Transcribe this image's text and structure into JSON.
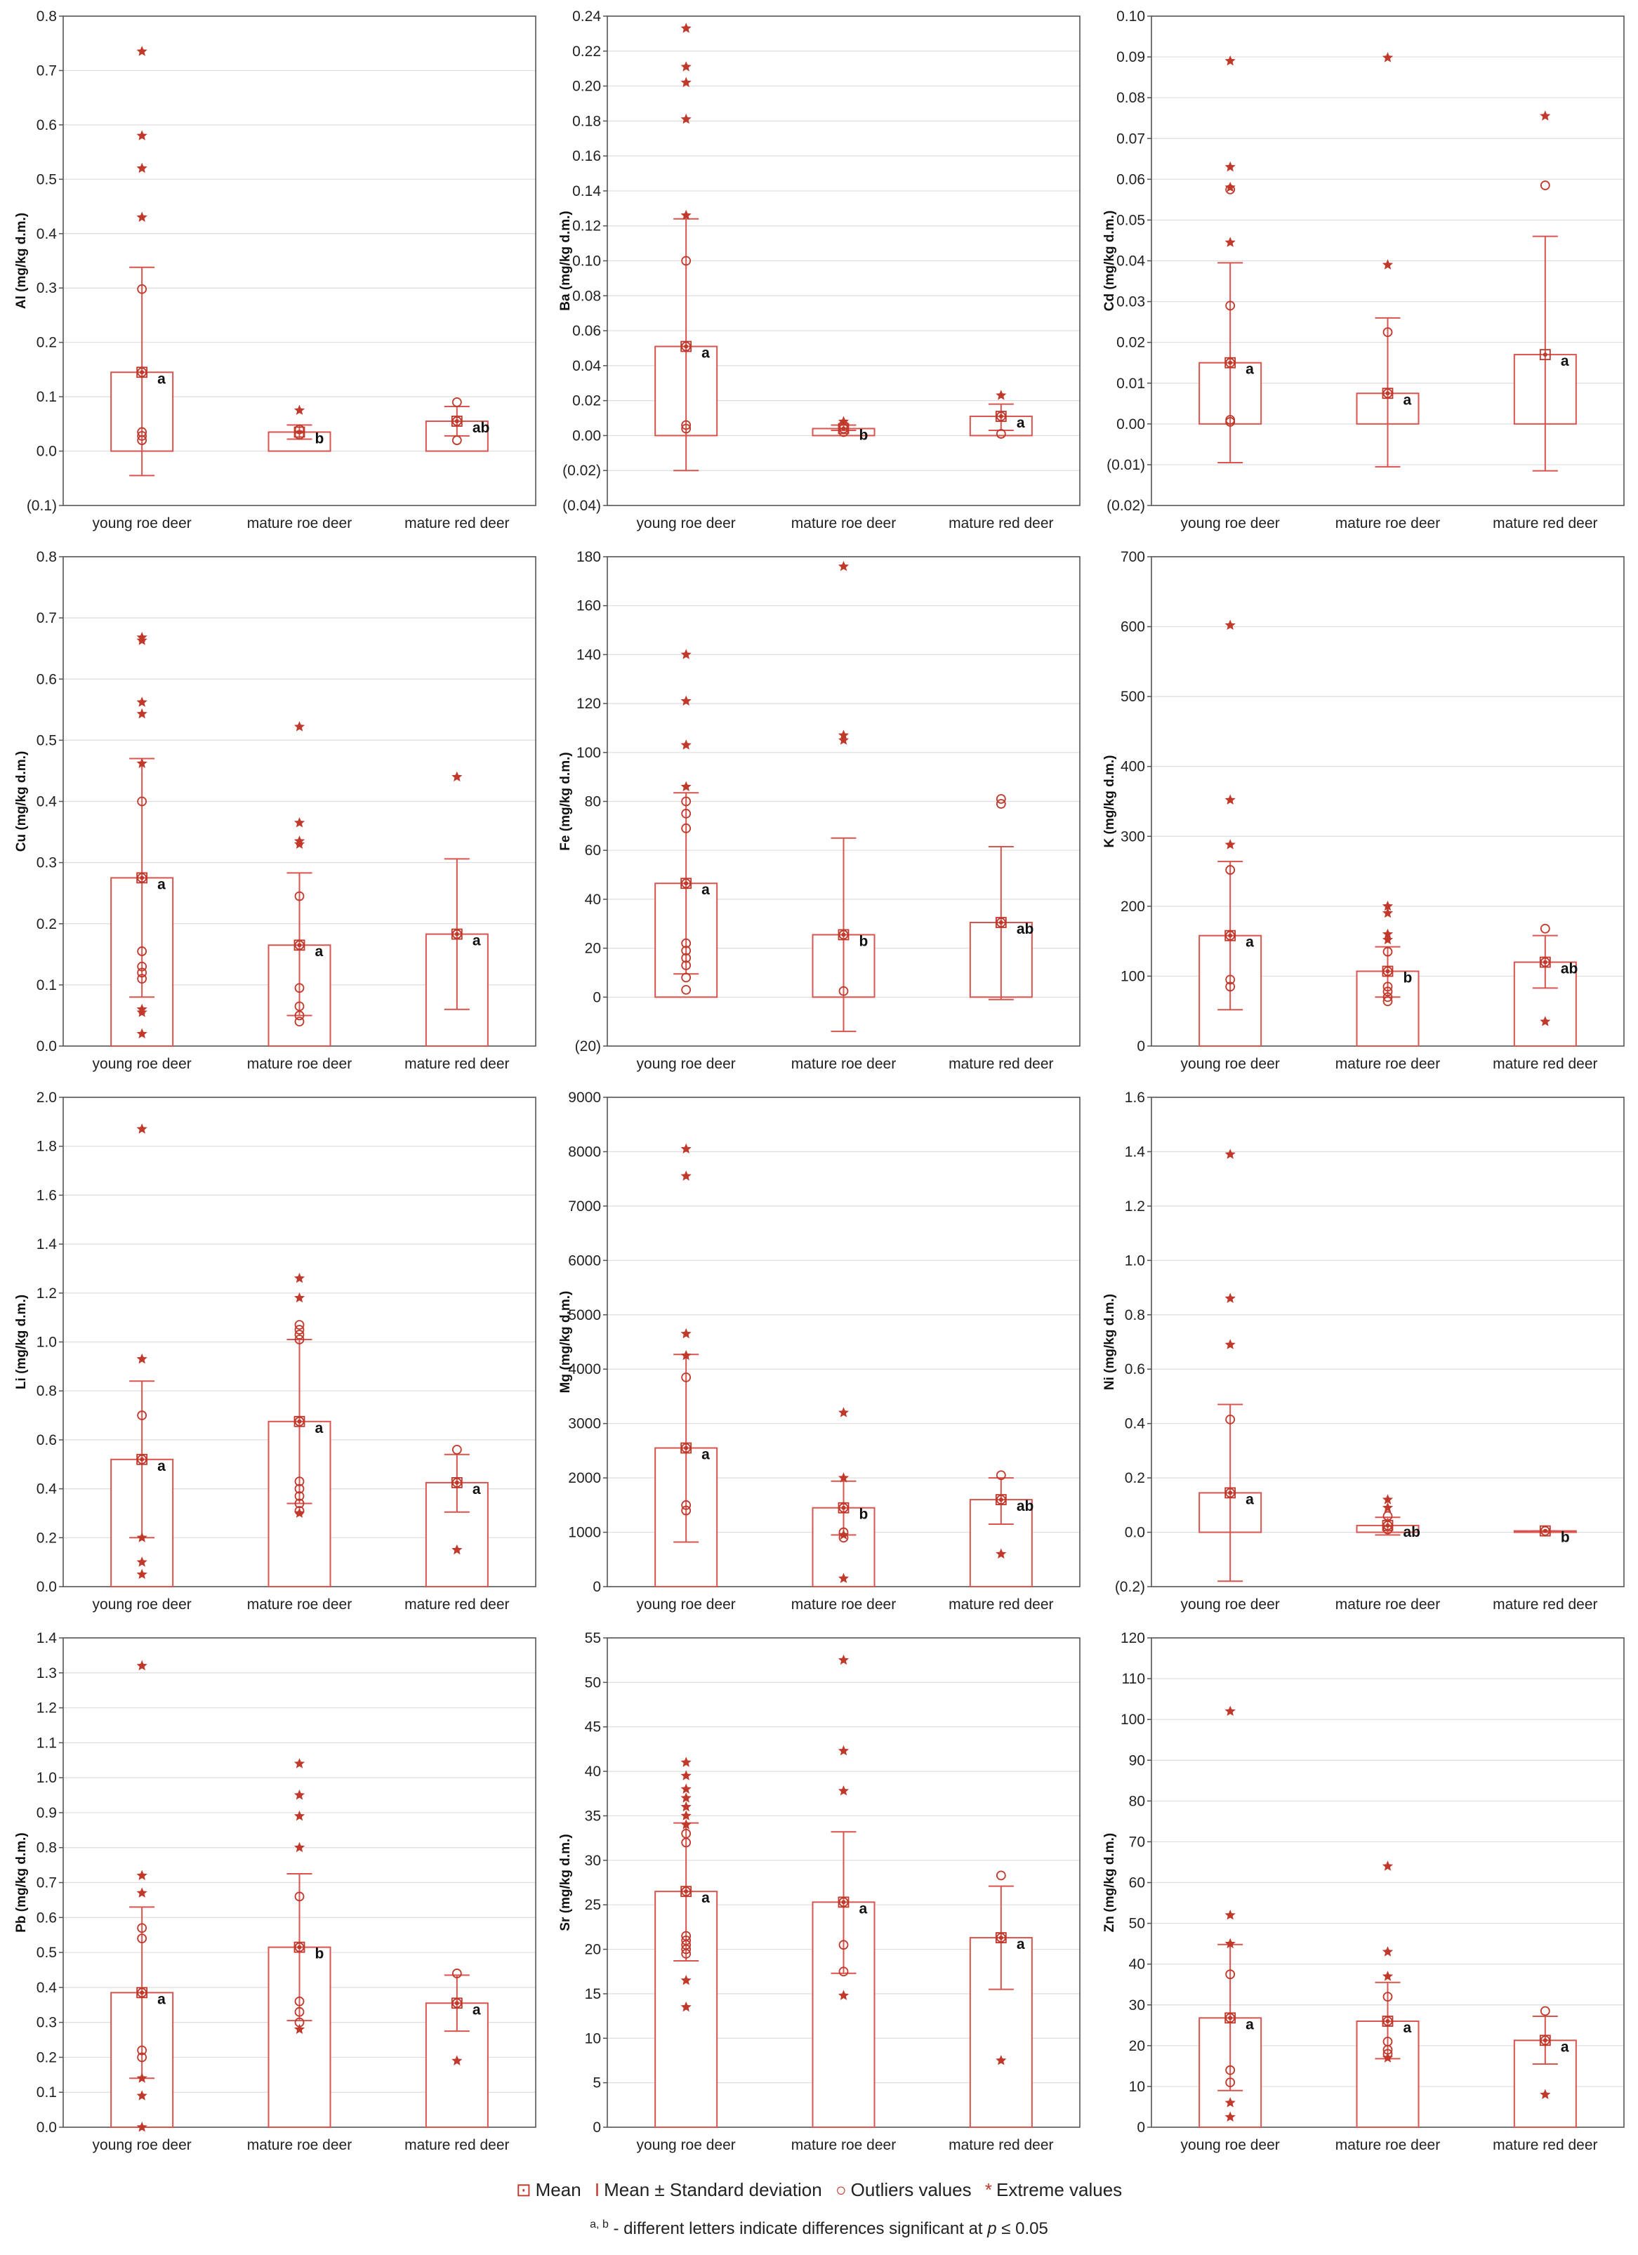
{
  "colors": {
    "bar_stroke": "#d9534f",
    "bar_fill": "#ffffff",
    "point": "#c0392b",
    "grid": "#dddddd",
    "axis": "#555555",
    "text": "#222222"
  },
  "chart_data": [
    {
      "type": "bar",
      "ylabel": "Al (mg/kg d.m.)",
      "yticks": [
        "0.8",
        "0.7",
        "0.6",
        "0.5",
        "0.4",
        "0.3",
        "0.2",
        "0.1",
        "0.0",
        "(0.1)"
      ],
      "ylim": [
        -0.1,
        0.8
      ],
      "categories": [
        "young roe deer",
        "mature roe deer",
        "mature red deer"
      ],
      "mean": [
        0.145,
        0.035,
        0.055
      ],
      "sd_low": [
        -0.045,
        0.022,
        0.028
      ],
      "sd_high": [
        0.338,
        0.048,
        0.082
      ],
      "letters": [
        "a",
        "b",
        "ab"
      ],
      "outliers": [
        [
          0.298,
          0.035,
          0.028,
          0.02,
          0.145
        ],
        [
          0.04,
          0.03
        ],
        [
          0.09,
          0.02,
          0.055
        ]
      ],
      "extremes": [
        [
          0.735,
          0.58,
          0.52,
          0.43
        ],
        [
          0.075
        ],
        []
      ]
    },
    {
      "type": "bar",
      "ylabel": "Ba (mg/kg d.m.)",
      "yticks": [
        "0.24",
        "0.22",
        "0.20",
        "0.18",
        "0.16",
        "0.14",
        "0.12",
        "0.10",
        "0.08",
        "0.06",
        "0.04",
        "0.02",
        "0.00",
        "(0.02)",
        "(0.04)"
      ],
      "ylim": [
        -0.04,
        0.24
      ],
      "categories": [
        "young roe deer",
        "mature roe deer",
        "mature red deer"
      ],
      "mean": [
        0.051,
        0.004,
        0.011
      ],
      "sd_low": [
        -0.02,
        0.003,
        0.003
      ],
      "sd_high": [
        0.124,
        0.006,
        0.018
      ],
      "letters": [
        "a",
        "b",
        "a"
      ],
      "outliers": [
        [
          0.1,
          0.051,
          0.006,
          0.004
        ],
        [
          0.006,
          0.004,
          0.002
        ],
        [
          0.011,
          0.001
        ]
      ],
      "extremes": [
        [
          0.233,
          0.211,
          0.202,
          0.181,
          0.126
        ],
        [
          0.008
        ],
        [
          0.023
        ]
      ]
    },
    {
      "type": "bar",
      "ylabel": "Cd (mg/kg d.m.)",
      "yticks": [
        "0.10",
        "0.09",
        "0.08",
        "0.07",
        "0.06",
        "0.05",
        "0.04",
        "0.03",
        "0.02",
        "0.01",
        "0.00",
        "(0.01)",
        "(0.02)"
      ],
      "ylim": [
        -0.02,
        0.1
      ],
      "categories": [
        "young roe deer",
        "mature roe deer",
        "mature red deer"
      ],
      "mean": [
        0.015,
        0.0075,
        0.017
      ],
      "sd_low": [
        -0.0095,
        -0.0105,
        -0.0115
      ],
      "sd_high": [
        0.0395,
        0.026,
        0.046
      ],
      "letters": [
        "a",
        "a",
        "a"
      ],
      "outliers": [
        [
          0.0575,
          0.029,
          0.015,
          0.001,
          0.0005
        ],
        [
          0.0225,
          0.0075
        ],
        [
          0.0585
        ]
      ],
      "extremes": [
        [
          0.089,
          0.063,
          0.058,
          0.0445
        ],
        [
          0.0898,
          0.039
        ],
        [
          0.0755
        ]
      ]
    },
    {
      "type": "bar",
      "ylabel": "Cu (mg/kg d.m.)",
      "yticks": [
        "0.8",
        "0.7",
        "0.6",
        "0.5",
        "0.4",
        "0.3",
        "0.2",
        "0.1",
        "0.0"
      ],
      "ylim": [
        0,
        0.8
      ],
      "categories": [
        "young roe deer",
        "mature roe deer",
        "mature red deer"
      ],
      "mean": [
        0.275,
        0.165,
        0.183
      ],
      "sd_low": [
        0.08,
        0.05,
        0.06
      ],
      "sd_high": [
        0.47,
        0.283,
        0.306
      ],
      "letters": [
        "a",
        "a",
        "a"
      ],
      "outliers": [
        [
          0.4,
          0.275,
          0.155,
          0.13,
          0.12,
          0.11
        ],
        [
          0.245,
          0.165,
          0.095,
          0.065,
          0.05,
          0.04
        ],
        [
          0.183
        ]
      ],
      "extremes": [
        [
          0.668,
          0.663,
          0.562,
          0.543,
          0.462,
          0.06,
          0.055,
          0.02
        ],
        [
          0.522,
          0.365,
          0.335,
          0.33
        ],
        [
          0.44
        ]
      ]
    },
    {
      "type": "bar",
      "ylabel": "Fe (mg/kg d.m.)",
      "yticks": [
        "180",
        "160",
        "140",
        "120",
        "100",
        "80",
        "60",
        "40",
        "20",
        "0",
        "(20)"
      ],
      "ylim": [
        -20,
        180
      ],
      "categories": [
        "young roe deer",
        "mature roe deer",
        "mature red deer"
      ],
      "mean": [
        46.5,
        25.5,
        30.5
      ],
      "sd_low": [
        9.5,
        -14,
        -1
      ],
      "sd_high": [
        83.5,
        65,
        61.5
      ],
      "letters": [
        "a",
        "b",
        "ab"
      ],
      "outliers": [
        [
          80,
          75,
          69,
          46.5,
          22,
          19,
          16,
          13,
          8,
          3
        ],
        [
          25.5,
          2.5
        ],
        [
          81,
          79,
          30.5
        ]
      ],
      "extremes": [
        [
          140,
          121,
          103,
          86
        ],
        [
          176,
          107,
          105
        ],
        []
      ]
    },
    {
      "type": "bar",
      "ylabel": "K (mg/kg d.m.)",
      "yticks": [
        "700",
        "600",
        "500",
        "400",
        "300",
        "200",
        "100",
        "0"
      ],
      "ylim": [
        0,
        700
      ],
      "categories": [
        "young roe deer",
        "mature roe deer",
        "mature red deer"
      ],
      "mean": [
        158,
        107,
        120
      ],
      "sd_low": [
        52,
        70,
        83
      ],
      "sd_high": [
        264,
        142,
        158
      ],
      "letters": [
        "a",
        "b",
        "ab"
      ],
      "outliers": [
        [
          252,
          158,
          95,
          85
        ],
        [
          135,
          107,
          85,
          78,
          70,
          64
        ],
        [
          168,
          120
        ]
      ],
      "extremes": [
        [
          602,
          352,
          288
        ],
        [
          200,
          190,
          160,
          152
        ],
        [
          35
        ]
      ]
    },
    {
      "type": "bar",
      "ylabel": "Li (mg/kg d.m.)",
      "yticks": [
        "2.0",
        "1.8",
        "1.6",
        "1.4",
        "1.2",
        "1.0",
        "0.8",
        "0.6",
        "0.4",
        "0.2",
        "0.0"
      ],
      "ylim": [
        0,
        2
      ],
      "categories": [
        "young roe deer",
        "mature roe deer",
        "mature red deer"
      ],
      "mean": [
        0.52,
        0.675,
        0.425
      ],
      "sd_low": [
        0.2,
        0.34,
        0.305
      ],
      "sd_high": [
        0.84,
        1.01,
        0.54
      ],
      "letters": [
        "a",
        "a",
        "a"
      ],
      "outliers": [
        [
          0.7,
          0.52
        ],
        [
          1.07,
          1.05,
          1.03,
          1.01,
          0.675,
          0.43,
          0.4,
          0.37,
          0.34,
          0.31
        ],
        [
          0.56,
          0.425
        ]
      ],
      "extremes": [
        [
          1.87,
          0.93,
          0.2,
          0.1,
          0.05
        ],
        [
          1.26,
          1.18,
          0.3
        ],
        [
          0.15
        ]
      ]
    },
    {
      "type": "bar",
      "ylabel": "Mg (mg/kg d.m.)",
      "yticks": [
        "9000",
        "8000",
        "7000",
        "6000",
        "5000",
        "4000",
        "3000",
        "2000",
        "1000",
        "0"
      ],
      "ylim": [
        0,
        9000
      ],
      "categories": [
        "young roe deer",
        "mature roe deer",
        "mature red deer"
      ],
      "mean": [
        2550,
        1450,
        1600
      ],
      "sd_low": [
        820,
        950,
        1150
      ],
      "sd_high": [
        4270,
        1940,
        2000
      ],
      "letters": [
        "a",
        "b",
        "ab"
      ],
      "outliers": [
        [
          3850,
          2550,
          1500,
          1400
        ],
        [
          1450,
          1000,
          900
        ],
        [
          2050,
          1600
        ]
      ],
      "extremes": [
        [
          8050,
          7550,
          4650,
          4250
        ],
        [
          3200,
          2000,
          950,
          150
        ],
        [
          600
        ]
      ]
    },
    {
      "type": "bar",
      "ylabel": "Ni (mg/kg d.m.)",
      "yticks": [
        "1.6",
        "1.4",
        "1.2",
        "1.0",
        "0.8",
        "0.6",
        "0.4",
        "0.2",
        "0.0",
        "(0.2)"
      ],
      "ylim": [
        -0.2,
        1.6
      ],
      "categories": [
        "young roe deer",
        "mature roe deer",
        "mature red deer"
      ],
      "mean": [
        0.145,
        0.025,
        0.005
      ],
      "sd_low": [
        -0.18,
        -0.01,
        0.005
      ],
      "sd_high": [
        0.47,
        0.055,
        0.005
      ],
      "letters": [
        "a",
        "ab",
        "b"
      ],
      "outliers": [
        [
          0.415,
          0.145
        ],
        [
          0.06,
          0.025,
          0.01
        ],
        [
          0.005
        ]
      ],
      "extremes": [
        [
          1.39,
          0.86,
          0.69
        ],
        [
          0.12,
          0.09
        ],
        []
      ]
    },
    {
      "type": "bar",
      "ylabel": "Pb (mg/kg d.m.)",
      "yticks": [
        "1.4",
        "1.3",
        "1.2",
        "1.1",
        "1.0",
        "0.9",
        "0.8",
        "0.7",
        "0.6",
        "0.5",
        "0.4",
        "0.3",
        "0.2",
        "0.1",
        "0.0"
      ],
      "ylim": [
        0,
        1.4
      ],
      "categories": [
        "young roe deer",
        "mature roe deer",
        "mature red deer"
      ],
      "mean": [
        0.385,
        0.515,
        0.355
      ],
      "sd_low": [
        0.14,
        0.305,
        0.275
      ],
      "sd_high": [
        0.63,
        0.725,
        0.435
      ],
      "letters": [
        "a",
        "b",
        "a"
      ],
      "outliers": [
        [
          0.57,
          0.54,
          0.385,
          0.22,
          0.2
        ],
        [
          0.66,
          0.515,
          0.36,
          0.33,
          0.3
        ],
        [
          0.44,
          0.355
        ]
      ],
      "extremes": [
        [
          1.32,
          0.72,
          0.67,
          0.14,
          0.09,
          0.0
        ],
        [
          1.04,
          0.95,
          0.89,
          0.8,
          0.28
        ],
        [
          0.19
        ]
      ]
    },
    {
      "type": "bar",
      "ylabel": "Sr (mg/kg d.m.)",
      "yticks": [
        "55",
        "50",
        "45",
        "40",
        "35",
        "30",
        "25",
        "20",
        "15",
        "10",
        "5",
        "0"
      ],
      "ylim": [
        0,
        55
      ],
      "categories": [
        "young roe deer",
        "mature roe deer",
        "mature red deer"
      ],
      "mean": [
        26.5,
        25.3,
        21.3
      ],
      "sd_low": [
        18.7,
        17.3,
        15.5
      ],
      "sd_high": [
        34.2,
        33.2,
        27.1
      ],
      "letters": [
        "a",
        "a",
        "a"
      ],
      "outliers": [
        [
          33,
          32,
          26.5,
          21.5,
          21,
          20.5,
          20,
          19.5
        ],
        [
          25.3,
          20.5,
          17.5
        ],
        [
          28.3,
          21.3
        ]
      ],
      "extremes": [
        [
          41,
          39.5,
          38,
          37,
          36,
          35,
          34,
          16.5,
          13.5
        ],
        [
          52.5,
          42.3,
          37.8,
          14.8
        ],
        [
          7.5
        ]
      ]
    },
    {
      "type": "bar",
      "ylabel": "Zn (mg/kg d.m.)",
      "yticks": [
        "120",
        "110",
        "100",
        "90",
        "80",
        "70",
        "60",
        "50",
        "40",
        "30",
        "20",
        "10",
        "0"
      ],
      "ylim": [
        0,
        120
      ],
      "categories": [
        "young roe deer",
        "mature roe deer",
        "mature red deer"
      ],
      "mean": [
        26.8,
        26.0,
        21.3
      ],
      "sd_low": [
        9.0,
        16.8,
        15.5
      ],
      "sd_high": [
        44.8,
        35.5,
        27.2
      ],
      "letters": [
        "a",
        "a",
        "a"
      ],
      "outliers": [
        [
          37.5,
          26.8,
          14,
          11
        ],
        [
          32,
          26,
          21,
          19,
          18
        ],
        [
          28.5,
          21.3
        ]
      ],
      "extremes": [
        [
          102,
          52,
          45,
          6,
          2.5
        ],
        [
          64,
          43,
          37,
          17
        ],
        [
          8
        ]
      ]
    }
  ],
  "legend": {
    "mean_symbol": "⊡",
    "mean_label": "Mean",
    "sd_symbol": "I",
    "sd_label": "Mean ± Standard deviation",
    "outlier_symbol": "○",
    "outlier_label": "Outliers values",
    "extreme_symbol": "*",
    "extreme_label": "Extreme values"
  },
  "footnote": {
    "superscript": "a, b",
    "text": "- different letters indicate differences significant at ",
    "p": "p",
    "rest": " ≤ 0.05"
  }
}
